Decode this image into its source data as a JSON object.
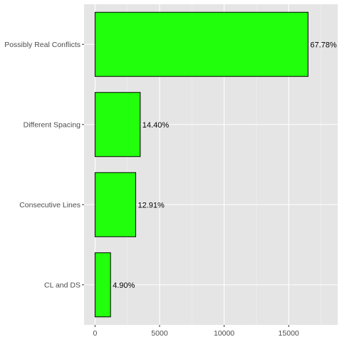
{
  "chart_data": {
    "type": "bar",
    "orientation": "horizontal",
    "categories": [
      "Possibly Real Conflicts",
      "Different Spacing",
      "Consecutive Lines",
      "CL and DS"
    ],
    "values": [
      16500,
      3500,
      3150,
      1200
    ],
    "labels": [
      "67.78%",
      "14.40%",
      "12.91%",
      "4.90%"
    ],
    "xlim": [
      -850,
      18800
    ],
    "x_ticks": [
      0,
      5000,
      10000,
      15000
    ],
    "x_tick_labels": [
      "0",
      "5000",
      "10000",
      "15000"
    ],
    "title": "",
    "xlabel": "",
    "ylabel": "",
    "grid": true,
    "legend": "none",
    "colors": {
      "bar_fill": "#22ff0d",
      "bar_stroke": "#000000",
      "panel_bg": "#e5e5e5",
      "grid_major": "#ffffff",
      "grid_minor": "#f2f2f2"
    }
  }
}
